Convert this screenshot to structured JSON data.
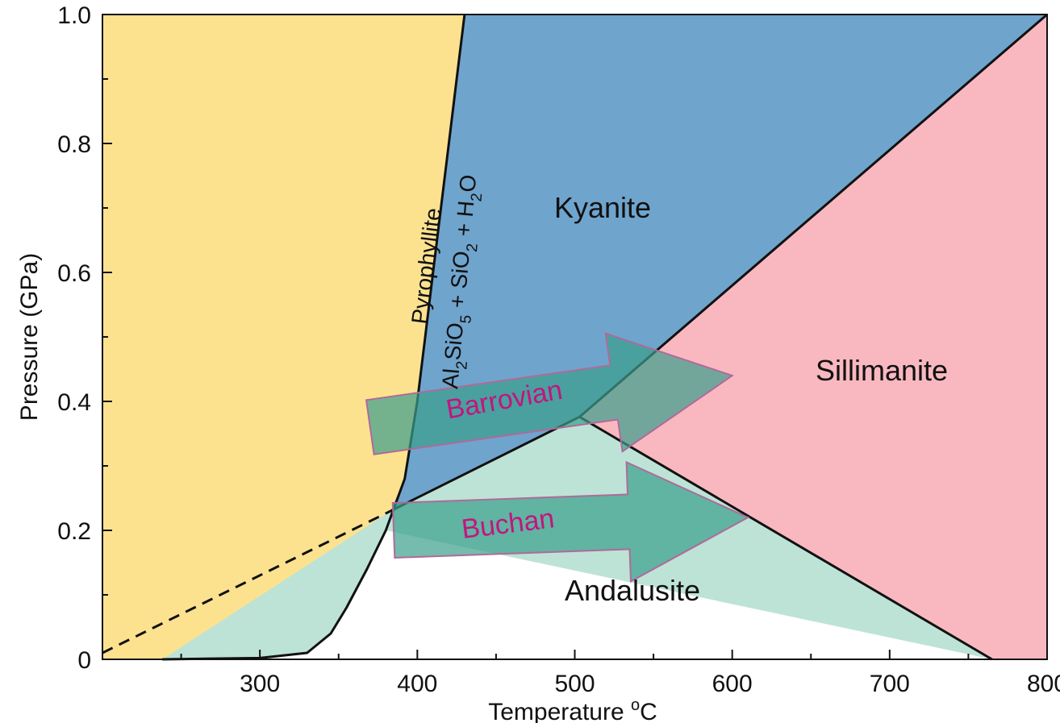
{
  "chart_data": {
    "type": "phase-diagram",
    "xlabel_text": "Temperature ",
    "xlabel_super": "o",
    "xlabel_unit": "C",
    "ylabel": "Pressure (GPa)",
    "xlim": [
      200,
      800
    ],
    "ylim": [
      0,
      1.0
    ],
    "x_tick_labels": [
      "300",
      "400",
      "500",
      "600",
      "700",
      "800"
    ],
    "y_tick_labels": [
      "0",
      "0.2",
      "0.4",
      "0.6",
      "0.8",
      "1.0"
    ],
    "triple_point": {
      "T": 503,
      "P": 0.376
    },
    "phase_boundaries": {
      "kyanite_andalusite": [
        [
          383,
          0.23
        ],
        [
          503,
          0.376
        ]
      ],
      "kyanite_andalusite_metastable": [
        [
          200,
          0.01
        ],
        [
          383,
          0.23
        ]
      ],
      "kyanite_sillimanite": [
        [
          503,
          0.376
        ],
        [
          800,
          1.0
        ]
      ],
      "andalusite_sillimanite": [
        [
          503,
          0.376
        ],
        [
          765,
          0.0
        ]
      ],
      "pyrophyllite_breakdown": [
        [
          238,
          0.0
        ],
        [
          300,
          0.002
        ],
        [
          330,
          0.01
        ],
        [
          345,
          0.04
        ],
        [
          355,
          0.08
        ],
        [
          368,
          0.14
        ],
        [
          380,
          0.2
        ],
        [
          392,
          0.28
        ],
        [
          400,
          0.4
        ],
        [
          405,
          0.5
        ],
        [
          410,
          0.6
        ],
        [
          415,
          0.7
        ],
        [
          420,
          0.8
        ],
        [
          425,
          0.9
        ],
        [
          430,
          1.0
        ]
      ]
    },
    "regions": [
      {
        "name": "Kyanite",
        "color": "#6fa4cd"
      },
      {
        "name": "Sillimanite",
        "color": "#f9b8c0"
      },
      {
        "name": "Andalusite",
        "color": "#bde3d6"
      },
      {
        "name": "Pyrophyllite",
        "color": "#fce28f"
      }
    ],
    "curve_labels": {
      "pyrophyllite": "Pyrophyllite",
      "products": [
        {
          "t": "Al",
          "sub": false
        },
        {
          "t": "2",
          "sub": true
        },
        {
          "t": "SiO",
          "sub": false
        },
        {
          "t": "5",
          "sub": true
        },
        {
          "t": " + SiO",
          "sub": false
        },
        {
          "t": "2",
          "sub": true
        },
        {
          "t": " + H",
          "sub": false
        },
        {
          "t": "2",
          "sub": true
        },
        {
          "t": "O",
          "sub": false
        }
      ]
    },
    "metamorphic_paths": [
      {
        "name": "Barrovian",
        "start": [
          370,
          0.36
        ],
        "end": [
          600,
          0.44
        ],
        "color": "#3a9e8c",
        "text_color": "#c2157f"
      },
      {
        "name": "Buchan",
        "start": [
          385,
          0.2
        ],
        "end": [
          610,
          0.22
        ],
        "color": "#3a9e8c",
        "text_color": "#c2157f"
      }
    ]
  }
}
